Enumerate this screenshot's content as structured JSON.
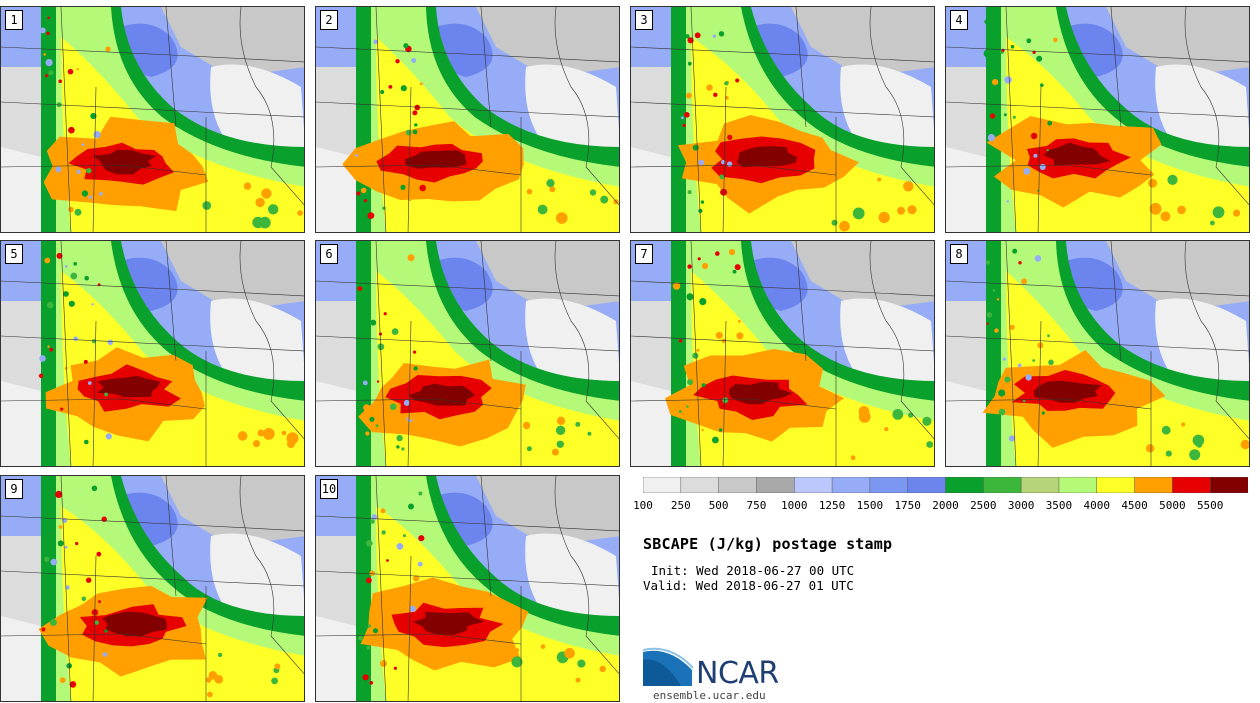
{
  "title": "SBCAPE (J/kg) postage stamp",
  "init": "Init: Wed 2018-06-27 00 UTC",
  "valid": "Valid: Wed 2018-06-27 01 UTC",
  "logo_text": "NCAR",
  "url": "ensemble.ucar.edu",
  "members": [
    "1",
    "2",
    "3",
    "4",
    "5",
    "6",
    "7",
    "8",
    "9",
    "10"
  ],
  "colorbar": {
    "levels": [
      "100",
      "250",
      "500",
      "750",
      "1000",
      "1250",
      "1500",
      "1750",
      "2000",
      "2500",
      "3000",
      "3500",
      "4000",
      "4500",
      "5000",
      "5500"
    ],
    "colors": [
      "#f0f0f0",
      "#dcdcdc",
      "#c8c8c8",
      "#a9a9a9",
      "#bcc8fb",
      "#96acf6",
      "#7c97f2",
      "#6c84ee",
      "#0aa02c",
      "#3db63c",
      "#b6d47a",
      "#b4fa78",
      "#ffff28",
      "#ffa000",
      "#e60000",
      "#820000"
    ]
  }
}
